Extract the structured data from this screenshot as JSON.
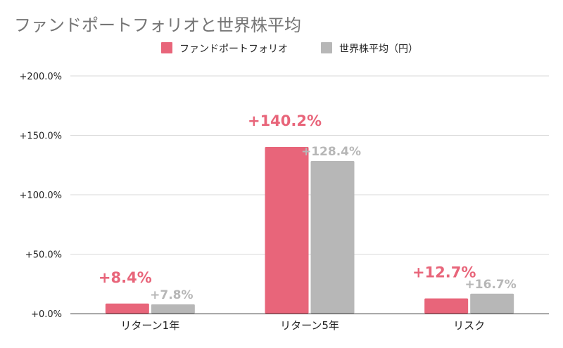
{
  "chart_data": {
    "type": "bar",
    "title": "ファンドポートフォリオと世界株平均",
    "categories": [
      "リターン1年",
      "リターン5年",
      "リスク"
    ],
    "series": [
      {
        "name": "ファンドポートフォリオ",
        "color": "#e8657a",
        "values": [
          8.4,
          140.2,
          12.7
        ],
        "labels": [
          "+8.4%",
          "+140.2%",
          "+12.7%"
        ]
      },
      {
        "name": "世界株平均（円）",
        "color": "#b7b7b7",
        "values": [
          7.8,
          128.4,
          16.7
        ],
        "labels": [
          "+7.8%",
          "+128.4%",
          "+16.7%"
        ]
      }
    ],
    "yticks": [
      "+0.0%",
      "+50.0%",
      "+100.0%",
      "+150.0%",
      "+200.0%"
    ],
    "ylim": [
      0,
      200
    ],
    "grid": true,
    "legend": "top"
  }
}
